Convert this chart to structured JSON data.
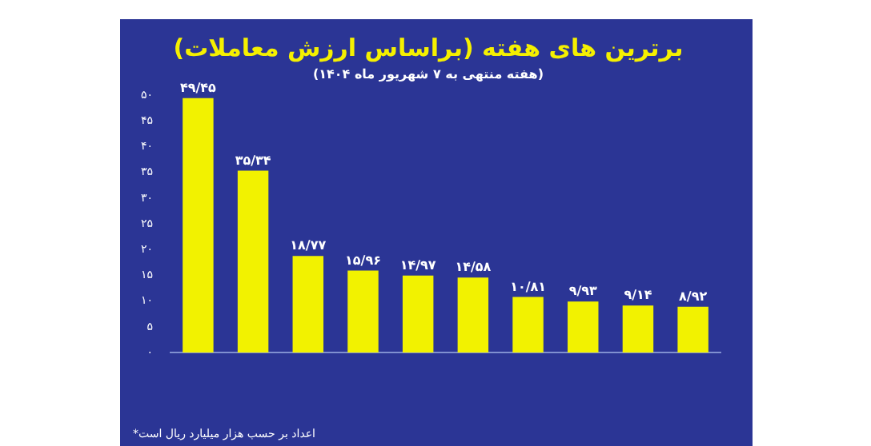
{
  "chart_data": {
    "type": "bar",
    "title": "برترین های هفته (براساس ارزش معاملات)",
    "subtitle": "(هفته منتهی به ۷ شهریور ماه ۱۴۰۴)",
    "categories": [
      null,
      null,
      null,
      null,
      null,
      null,
      null,
      null,
      null,
      null
    ],
    "values": [
      49.45,
      35.34,
      18.77,
      15.96,
      14.97,
      14.58,
      10.81,
      9.93,
      9.14,
      8.92
    ],
    "value_labels": [
      "۴۹/۴۵",
      "۳۵/۳۴",
      "۱۸/۷۷",
      "۱۵/۹۶",
      "۱۴/۹۷",
      "۱۴/۵۸",
      "۱۰/۸۱",
      "۹/۹۳",
      "۹/۱۴",
      "۸/۹۲"
    ],
    "color": "#f2f200",
    "ylim": [
      0,
      50
    ],
    "yticks": [
      {
        "value": 0,
        "label": "۰"
      },
      {
        "value": 5,
        "label": "۵"
      },
      {
        "value": 10,
        "label": "۱۰"
      },
      {
        "value": 15,
        "label": "۱۵"
      },
      {
        "value": 20,
        "label": "۲۰"
      },
      {
        "value": 25,
        "label": "۲۵"
      },
      {
        "value": 30,
        "label": "۳۰"
      },
      {
        "value": 35,
        "label": "۳۵"
      },
      {
        "value": 40,
        "label": "۴۰"
      },
      {
        "value": 45,
        "label": "۴۵"
      },
      {
        "value": 50,
        "label": "۵۰"
      }
    ],
    "grid": false,
    "legend": false,
    "annotations": [
      "*اعداد بر حسب هزار میلیارد ریال است"
    ]
  }
}
